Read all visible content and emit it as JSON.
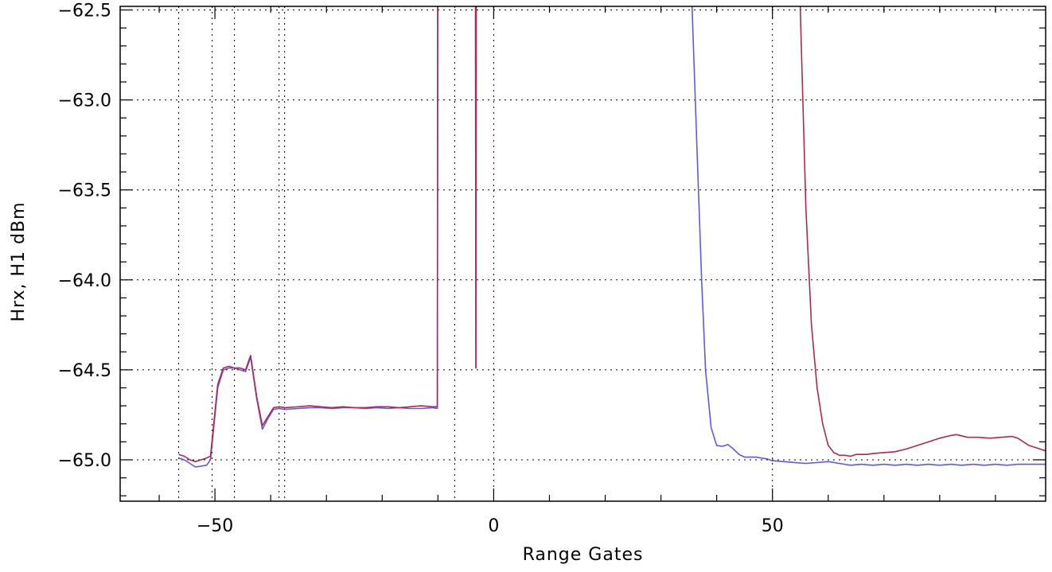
{
  "chart_data": {
    "type": "line",
    "title": "",
    "xlabel": "Range Gates",
    "ylabel": "Hrx, H1 dBm",
    "xlim": [
      -67,
      99
    ],
    "ylim": [
      -65.23,
      -62.48
    ],
    "xticks": [
      -50,
      0,
      50
    ],
    "xtick_labels": [
      "−50",
      "0",
      "50"
    ],
    "yticks": [
      -65.0,
      -64.5,
      -64.0,
      -63.5,
      -63.0,
      -62.5
    ],
    "ytick_labels": [
      "−65.0",
      "−64.5",
      "−64.0",
      "−63.5",
      "−63.0",
      "−62.5"
    ],
    "grid": "dotted",
    "vertical_markers": [
      -56.5,
      -50.5,
      -46.5,
      -38.5,
      -37.5,
      -7,
      0,
      50
    ],
    "series": [
      {
        "color": "#5a5aea",
        "points": [
          [
            -56.5,
            -64.99
          ],
          [
            -55.5,
            -65.0
          ],
          [
            -54.5,
            -65.02
          ],
          [
            -53.5,
            -65.04
          ],
          [
            -52.5,
            -65.035
          ],
          [
            -51.5,
            -65.03
          ],
          [
            -50.8,
            -65.0
          ],
          [
            -49.5,
            -64.6
          ],
          [
            -48.5,
            -64.5
          ],
          [
            -47.5,
            -64.49
          ],
          [
            -46.5,
            -64.49
          ],
          [
            -45.5,
            -64.5
          ],
          [
            -44.5,
            -64.51
          ],
          [
            -43.6,
            -64.43
          ],
          [
            -42.5,
            -64.66
          ],
          [
            -41.5,
            -64.83
          ],
          [
            -40.5,
            -64.77
          ],
          [
            -39.5,
            -64.72
          ],
          [
            -38.5,
            -64.715
          ],
          [
            -37.5,
            -64.72
          ],
          [
            -35,
            -64.715
          ],
          [
            -33,
            -64.71
          ],
          [
            -31,
            -64.71
          ],
          [
            -29,
            -64.715
          ],
          [
            -27,
            -64.71
          ],
          [
            -25,
            -64.71
          ],
          [
            -23,
            -64.715
          ],
          [
            -21,
            -64.71
          ],
          [
            -19,
            -64.715
          ],
          [
            -17,
            -64.71
          ],
          [
            -15,
            -64.715
          ],
          [
            -13,
            -64.715
          ],
          [
            -11,
            -64.71
          ],
          [
            -10.1,
            -64.715
          ],
          [
            -10,
            -61.0
          ],
          [
            -3.3,
            -61.0
          ],
          [
            -3.2,
            -64.49
          ],
          [
            -3.1,
            -61.0
          ],
          [
            35.2,
            -61.0
          ],
          [
            35.6,
            -62.5
          ],
          [
            36.5,
            -63.3
          ],
          [
            37.3,
            -64.0
          ],
          [
            38.0,
            -64.5
          ],
          [
            39.0,
            -64.82
          ],
          [
            40.0,
            -64.92
          ],
          [
            41.0,
            -64.925
          ],
          [
            42.0,
            -64.915
          ],
          [
            43.0,
            -64.94
          ],
          [
            44.0,
            -64.97
          ],
          [
            45.0,
            -64.985
          ],
          [
            47,
            -64.985
          ],
          [
            48,
            -64.99
          ],
          [
            49,
            -64.995
          ],
          [
            50,
            -65.005
          ],
          [
            52,
            -65.01
          ],
          [
            54,
            -65.015
          ],
          [
            56,
            -65.02
          ],
          [
            58,
            -65.015
          ],
          [
            60,
            -65.01
          ],
          [
            62,
            -65.02
          ],
          [
            64,
            -65.03
          ],
          [
            66,
            -65.025
          ],
          [
            68,
            -65.03
          ],
          [
            70,
            -65.025
          ],
          [
            72,
            -65.03
          ],
          [
            74,
            -65.025
          ],
          [
            76,
            -65.03
          ],
          [
            78,
            -65.025
          ],
          [
            80,
            -65.03
          ],
          [
            82,
            -65.025
          ],
          [
            84,
            -65.03
          ],
          [
            86,
            -65.025
          ],
          [
            88,
            -65.03
          ],
          [
            90,
            -65.025
          ],
          [
            92,
            -65.03
          ],
          [
            94,
            -65.025
          ],
          [
            96,
            -65.025
          ],
          [
            99,
            -65.025
          ]
        ]
      },
      {
        "color": "#b0284e",
        "points": [
          [
            -56.5,
            -64.97
          ],
          [
            -55.5,
            -64.98
          ],
          [
            -54.5,
            -65.0
          ],
          [
            -53.5,
            -65.01
          ],
          [
            -52.5,
            -65.0
          ],
          [
            -51.5,
            -64.99
          ],
          [
            -50.8,
            -64.98
          ],
          [
            -49.5,
            -64.58
          ],
          [
            -48.5,
            -64.49
          ],
          [
            -47.5,
            -64.48
          ],
          [
            -46.5,
            -64.49
          ],
          [
            -45.5,
            -64.49
          ],
          [
            -44.5,
            -64.5
          ],
          [
            -43.6,
            -64.42
          ],
          [
            -42.5,
            -64.65
          ],
          [
            -41.5,
            -64.81
          ],
          [
            -40.5,
            -64.76
          ],
          [
            -39.5,
            -64.71
          ],
          [
            -38.5,
            -64.705
          ],
          [
            -37.5,
            -64.71
          ],
          [
            -35,
            -64.705
          ],
          [
            -33,
            -64.7
          ],
          [
            -31,
            -64.705
          ],
          [
            -29,
            -64.71
          ],
          [
            -27,
            -64.705
          ],
          [
            -25,
            -64.71
          ],
          [
            -23,
            -64.71
          ],
          [
            -21,
            -64.705
          ],
          [
            -19,
            -64.705
          ],
          [
            -17,
            -64.71
          ],
          [
            -15,
            -64.705
          ],
          [
            -13,
            -64.7
          ],
          [
            -11,
            -64.705
          ],
          [
            -10.1,
            -64.705
          ],
          [
            -10,
            -61.0
          ],
          [
            -3.3,
            -61.0
          ],
          [
            -3.2,
            -64.49
          ],
          [
            -3.1,
            -61.0
          ],
          [
            54.6,
            -61.0
          ],
          [
            55,
            -62.5
          ],
          [
            56,
            -63.6
          ],
          [
            57,
            -64.25
          ],
          [
            58,
            -64.6
          ],
          [
            59,
            -64.8
          ],
          [
            60,
            -64.92
          ],
          [
            61,
            -64.96
          ],
          [
            62,
            -64.975
          ],
          [
            63,
            -64.975
          ],
          [
            64,
            -64.98
          ],
          [
            65,
            -64.97
          ],
          [
            67,
            -64.97
          ],
          [
            68,
            -64.965
          ],
          [
            70,
            -64.96
          ],
          [
            72,
            -64.955
          ],
          [
            74,
            -64.94
          ],
          [
            76,
            -64.92
          ],
          [
            78,
            -64.9
          ],
          [
            80,
            -64.88
          ],
          [
            82,
            -64.865
          ],
          [
            83,
            -64.86
          ],
          [
            85,
            -64.875
          ],
          [
            87,
            -64.875
          ],
          [
            89,
            -64.88
          ],
          [
            91,
            -64.875
          ],
          [
            93,
            -64.87
          ],
          [
            94,
            -64.88
          ],
          [
            96,
            -64.92
          ],
          [
            97,
            -64.93
          ],
          [
            99,
            -64.95
          ]
        ]
      }
    ]
  }
}
